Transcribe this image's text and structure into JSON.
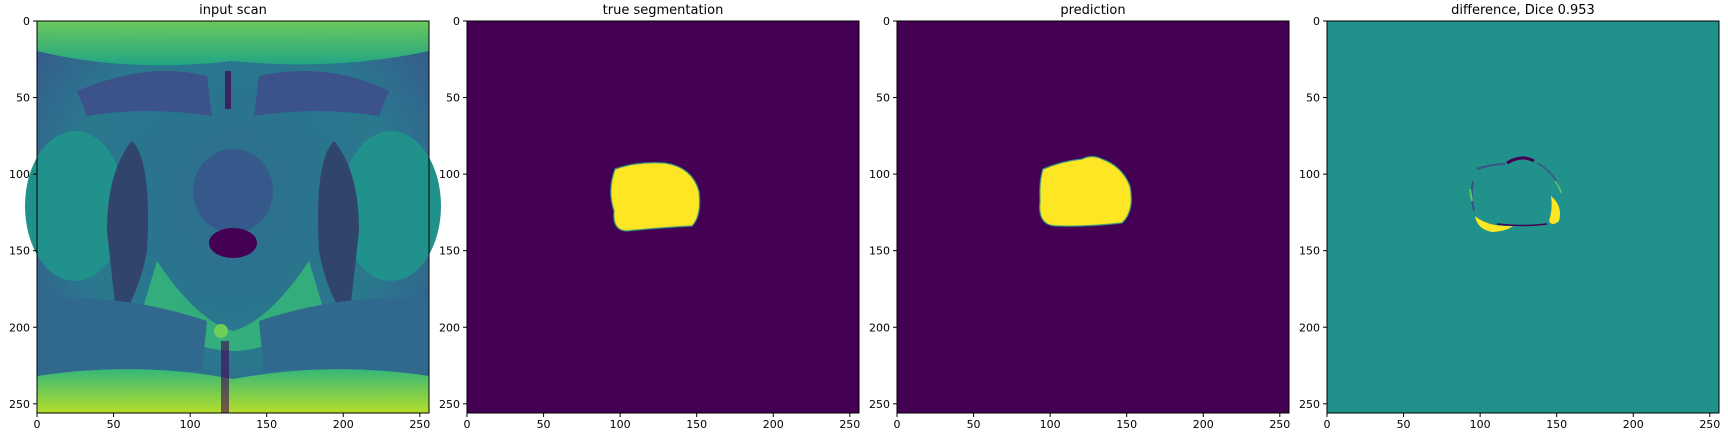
{
  "figure": {
    "panels": [
      {
        "id": "input",
        "title": "input scan",
        "image_desc": "axial pelvic MRI scan rendered with viridis colormap",
        "xticks": [
          "0",
          "50",
          "100",
          "150",
          "200",
          "250"
        ],
        "yticks": [
          "0",
          "50",
          "100",
          "150",
          "200",
          "250"
        ],
        "colormap": "viridis"
      },
      {
        "id": "true",
        "title": "true segmentation",
        "image_desc": "binary mask: yellow segmented region on dark purple background",
        "xticks": [
          "0",
          "50",
          "100",
          "150",
          "200",
          "250"
        ],
        "yticks": [
          "0",
          "50",
          "100",
          "150",
          "200",
          "250"
        ],
        "colormap": "viridis"
      },
      {
        "id": "pred",
        "title": "prediction",
        "image_desc": "predicted binary mask: yellow region on dark purple background",
        "xticks": [
          "0",
          "50",
          "100",
          "150",
          "200",
          "250"
        ],
        "yticks": [
          "0",
          "50",
          "100",
          "150",
          "200",
          "250"
        ],
        "colormap": "viridis"
      },
      {
        "id": "diff",
        "title": "difference, Dice 0.953",
        "image_desc": "difference map: teal background with thin boundary differences in yellow and purple",
        "xticks": [
          "0",
          "50",
          "100",
          "150",
          "200",
          "250"
        ],
        "yticks": [
          "0",
          "50",
          "100",
          "150",
          "200",
          "250"
        ],
        "colormap": "viridis"
      }
    ]
  },
  "colors": {
    "viridis_dark": "#440154",
    "viridis_mid": "#21918c",
    "viridis_light": "#fde725",
    "viridis_blue": "#3b528b",
    "viridis_green": "#5ec962",
    "axis_black": "#000000"
  }
}
